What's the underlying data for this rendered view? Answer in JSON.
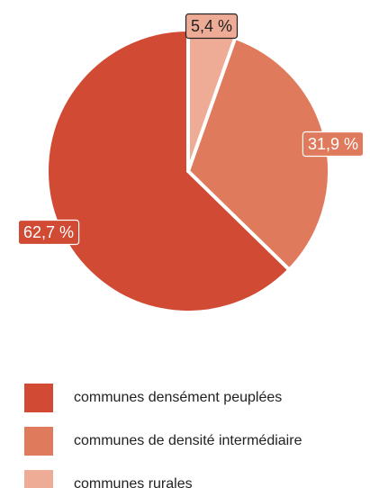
{
  "chart_data": {
    "type": "pie",
    "categories": [
      "communes densément peuplées",
      "communes de densité intermédiaire",
      "communes rurales"
    ],
    "values": [
      62.7,
      31.9,
      5.4
    ],
    "data_labels": [
      "62,7 %",
      "31,9 %",
      "5,4 %"
    ],
    "colors": [
      "#d14a34",
      "#e07a5c",
      "#eeab96"
    ],
    "label_box_colors": [
      "#d14a34",
      "#e07a5c",
      "#eeab96"
    ],
    "label_text_colors": [
      "#ffffff",
      "#ffffff",
      "#222222"
    ],
    "label_border_colors": [
      "#ffffff",
      "#ffffff",
      "#222222"
    ],
    "start_angle_deg": 0,
    "direction": "counterclockwise",
    "legend": {
      "placement": "bottom-left",
      "entries": [
        "communes densément peuplées",
        "communes de densité intermédiaire",
        "communes rurales"
      ]
    },
    "title": "",
    "xlabel": "",
    "ylabel": ""
  }
}
